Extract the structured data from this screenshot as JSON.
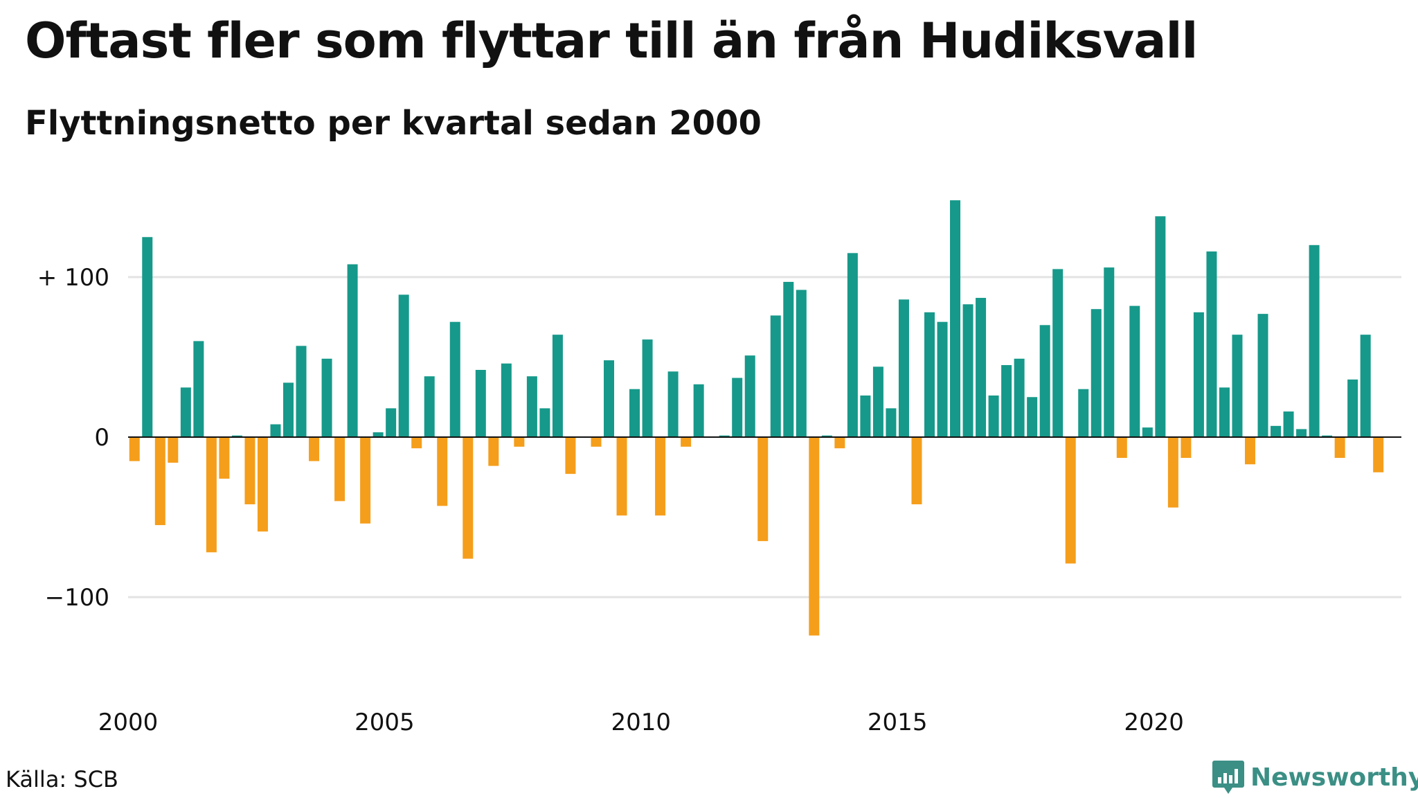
{
  "title": "Oftast fler som flyttar till än från Hudiksvall",
  "subtitle": "Flyttningsnetto per kvartal sedan 2000",
  "source": "Källa: SCB",
  "brand": "Newsworthy",
  "colors": {
    "positive": "#16998a",
    "negative": "#f59e1b",
    "grid": "#e3e3e3",
    "zero_line": "#111111",
    "brand": "#3b8f85"
  },
  "chart_data": {
    "type": "bar",
    "title": "Oftast fler som flyttar till än från Hudiksvall",
    "subtitle": "Flyttningsnetto per kvartal sedan 2000",
    "start": {
      "year": 2000,
      "quarter": 1
    },
    "x_tick_labels": [
      "2000",
      "2005",
      "2010",
      "2015",
      "2020"
    ],
    "y_ticks": [
      {
        "value": 100,
        "label": "+ 100"
      },
      {
        "value": 0,
        "label": "0"
      },
      {
        "value": -100,
        "label": "−100"
      }
    ],
    "ylim": [
      -140,
      150
    ],
    "grid": true,
    "values": [
      -15,
      125,
      -55,
      -16,
      31,
      60,
      -72,
      -26,
      1,
      -42,
      -59,
      8,
      34,
      57,
      -15,
      49,
      -40,
      108,
      -54,
      3,
      18,
      89,
      -7,
      38,
      -43,
      72,
      -76,
      42,
      -18,
      46,
      -6,
      38,
      18,
      64,
      -23,
      0,
      -6,
      48,
      -49,
      30,
      61,
      -49,
      41,
      -6,
      33,
      0,
      1,
      37,
      51,
      -65,
      76,
      97,
      92,
      -124,
      1,
      -7,
      115,
      26,
      44,
      18,
      86,
      -42,
      78,
      72,
      148,
      83,
      87,
      26,
      45,
      49,
      25,
      70,
      105,
      -79,
      30,
      80,
      106,
      -13,
      82,
      6,
      138,
      -44,
      -13,
      78,
      116,
      31,
      64,
      -17,
      77,
      7,
      16,
      5,
      120,
      1,
      -13,
      36,
      64,
      -22
    ]
  }
}
